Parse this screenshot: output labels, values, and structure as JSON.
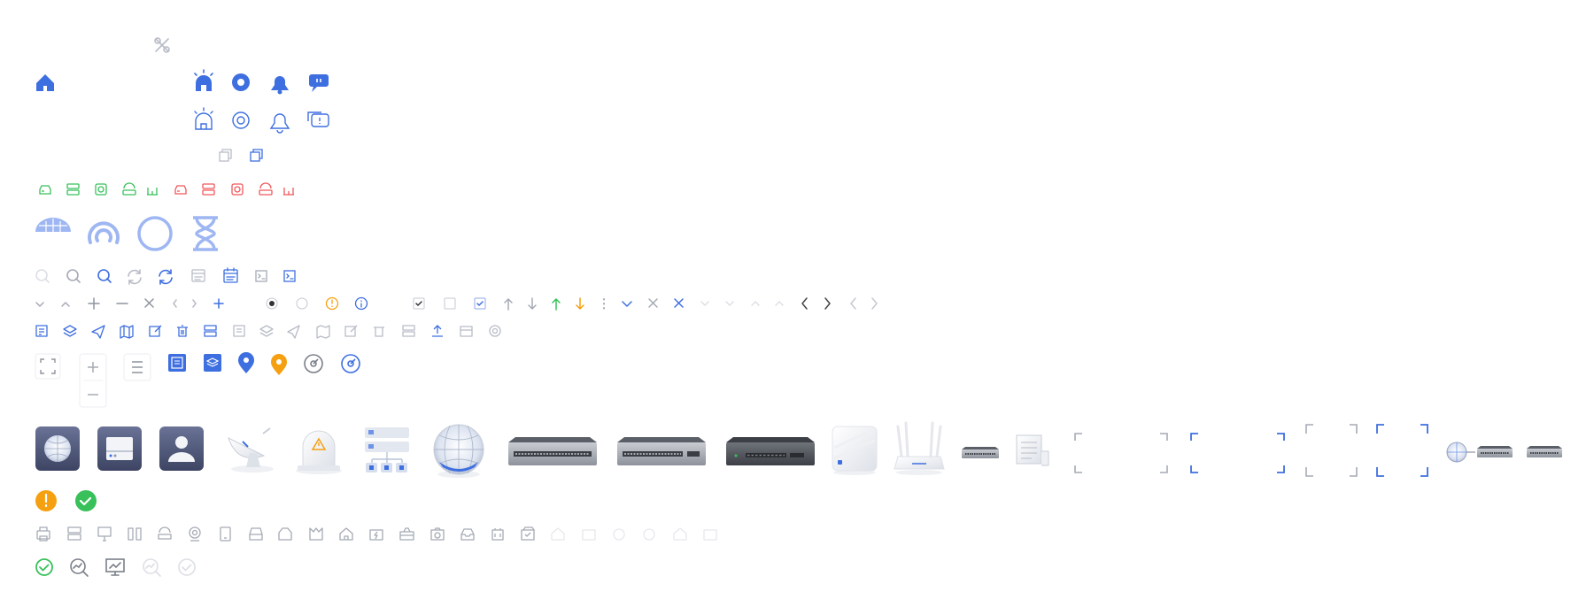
{
  "sheet": {
    "title": "",
    "colors": {
      "primary": "#3E6FE0",
      "primary_light": "#9EB6F2",
      "gray": "#B8BCC6",
      "gray_light": "#DCDFE5",
      "green": "#38C05A",
      "red": "#F0575C",
      "orange": "#F5A011",
      "dark_device": "#4A5270"
    }
  },
  "rows": {
    "tools": [
      "tools-icon"
    ],
    "nav_filled": [
      "home-filled-icon",
      "alarm-filled-icon",
      "settings-filled-icon",
      "bell-filled-icon",
      "message-filled-icon"
    ],
    "nav_outline": [
      "alarm-outline-icon",
      "settings-outline-icon",
      "bell-outline-icon",
      "message-outline-icon"
    ],
    "window": [
      "restore-window-icon",
      "copy-window-icon"
    ],
    "status_devices": [
      "device-green-icon",
      "server-green-icon",
      "camera-green-icon",
      "router-green-icon",
      "ap-green-icon",
      "device-red-icon",
      "server-red-icon",
      "camera-red-icon",
      "router-red-icon",
      "ap-red-icon"
    ],
    "loaders": [
      "dome-icon",
      "spinner-arc-icon",
      "spinner-ring-icon",
      "hourglass-icon"
    ],
    "search_refresh": [
      "search-light-icon",
      "search-gray-icon",
      "search-blue-icon",
      "refresh-gray-icon",
      "refresh-blue-icon",
      "calendar-gray-icon",
      "calendar-blue-icon",
      "terminal-gray-icon",
      "terminal-blue-icon"
    ],
    "controls": [
      "chevron-down-icon",
      "chevron-up-icon",
      "plus-icon",
      "minus-icon",
      "close-icon",
      "chevron-left-icon",
      "chevron-right-icon",
      "plus-blue-icon",
      "radio-checked-icon",
      "radio-empty-icon",
      "warning-circle-icon",
      "info-circle-icon",
      "checkbox-checked-dark-icon",
      "checkbox-empty-icon",
      "checkbox-checked-blue-icon",
      "arrow-up-gray-icon",
      "arrow-down-gray-icon",
      "arrow-up-green-icon",
      "arrow-down-orange-icon",
      "more-vertical-icon",
      "chevron-down-blue-icon",
      "close-gray-icon",
      "close-blue-icon",
      "chevron-down-faint-icon",
      "chevron-down-faint-2-icon",
      "chevron-up-faint-icon",
      "chevron-up-faint-2-icon",
      "chevron-left-dark-icon",
      "chevron-right-dark-icon",
      "chevron-left-faint-icon",
      "chevron-right-faint-icon"
    ],
    "tools_row": [
      "report-blue-icon",
      "layers-blue-icon",
      "send-blue-icon",
      "map-blue-icon",
      "edit-blue-icon",
      "delete-blue-icon",
      "server-blue-icon",
      "report-gray-icon",
      "layers-gray-icon",
      "send-gray-icon",
      "map-gray-icon",
      "edit-gray-icon",
      "delete-gray-icon",
      "server-gray-icon",
      "upload-blue-icon",
      "calendar-small-gray-icon",
      "gear-small-gray-icon"
    ],
    "map_controls": [
      "fullscreen-icon",
      "zoom-in-icon",
      "zoom-out-icon",
      "menu-icon",
      "report-tile-icon",
      "layers-tile-icon",
      "location-pin-blue-icon",
      "location-pin-orange-icon",
      "gauge-gray-icon",
      "gauge-blue-icon"
    ],
    "devices": [
      "globe-tile-icon",
      "storage-tile-icon",
      "user-tile-icon",
      "satellite-dish-icon",
      "alarm-dome-icon",
      "server-rack-icon",
      "globe-large-icon",
      "switch-24port-icon",
      "switch-16port-icon",
      "switch-dark-icon",
      "ceiling-ap-icon",
      "wifi-router-icon",
      "mini-switch-icon",
      "document-roll-icon",
      "corner-frame-gray-icon",
      "corner-frame-blue-icon",
      "corner-frame-small-gray-icon",
      "corner-frame-small-blue-icon",
      "globe-switch-link-icon",
      "mini-switch-2-icon"
    ],
    "alerts": [
      "alert-orange-icon",
      "check-green-icon"
    ],
    "equipment_outline": [
      "printer-icon",
      "rack-icon",
      "monitor-icon",
      "columns-icon",
      "router-outline-icon",
      "webcam-icon",
      "tablet-icon",
      "nas-icon",
      "box-icon",
      "bag-icon",
      "lock-box-icon",
      "power-box-icon",
      "toolbox-icon",
      "camera-box-icon",
      "tray-icon",
      "battery-box-icon",
      "check-box-outline-icon",
      "faded-1-icon",
      "faded-2-icon",
      "faded-3-icon",
      "faded-4-icon",
      "faded-5-icon",
      "faded-6-icon"
    ],
    "status_row": [
      "check-circle-green-icon",
      "search-trend-icon",
      "monitor-chart-icon",
      "search-trend-faint-icon",
      "check-circle-faint-icon"
    ]
  }
}
